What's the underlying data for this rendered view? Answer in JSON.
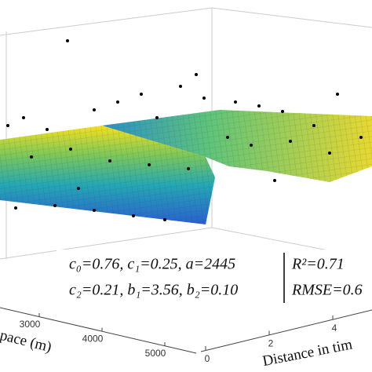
{
  "chart_data": {
    "type": "surface",
    "xlabel": "pace (m)",
    "ylabel": "Distance in tim",
    "xticks": [
      3000,
      4000,
      5000
    ],
    "yticks": [
      0,
      2,
      4
    ],
    "annotation": {
      "left": [
        "c₀=0.76, c₁=0.25, a=2445",
        "c₂=0.21, b₁=3.56, b₂=0.10"
      ],
      "right": [
        "R²=0.71",
        "RMSE=0.6"
      ]
    }
  }
}
